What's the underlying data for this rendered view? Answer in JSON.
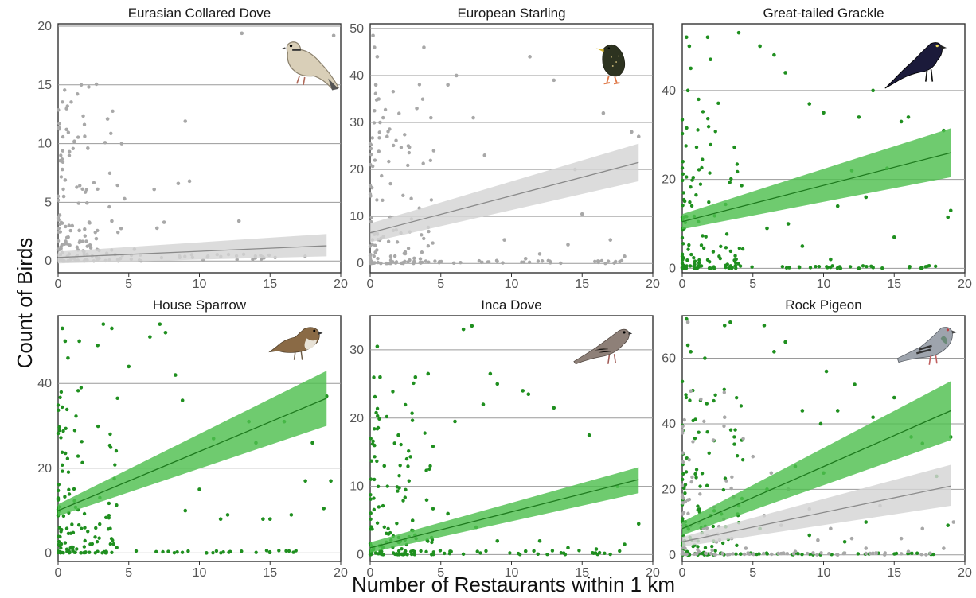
{
  "figure": {
    "ylabel": "Count of Birds",
    "xlabel": "Number of Restaurants within 1 km"
  },
  "colors": {
    "green": "#1f8f1f",
    "grey": "#a8a8a8",
    "green_ribbon": "#4fbf4f",
    "grey_ribbon": "#d4d4d4"
  },
  "chart_data": [
    {
      "type": "scatter",
      "title": "Eurasian Collared Dove",
      "xlim": [
        0,
        20
      ],
      "ylim": [
        -1,
        20.2
      ],
      "xticks": [
        0,
        5,
        10,
        15,
        20
      ],
      "yticks": [
        0,
        5,
        10,
        15,
        20
      ],
      "bird_icon": "collared-dove",
      "points_color": "grey",
      "n_points": 180,
      "series": [
        {
          "color": "grey",
          "points": [
            [
              0.3,
              7.8
            ],
            [
              0.5,
              6.9
            ],
            [
              0.4,
              5.5
            ],
            [
              0.6,
              11.2
            ],
            [
              0.8,
              9.3
            ],
            [
              3.5,
              12.1
            ],
            [
              4.5,
              10.0
            ],
            [
              2.2,
              3.3
            ],
            [
              2.7,
              1.9
            ],
            [
              3.8,
              3.4
            ],
            [
              4.7,
              5.3
            ],
            [
              6.8,
              6.1
            ],
            [
              8.5,
              6.6
            ],
            [
              9.0,
              11.9
            ],
            [
              9.3,
              6.8
            ],
            [
              7.5,
              3.3
            ],
            [
              7.0,
              2.8
            ],
            [
              12.8,
              3.4
            ],
            [
              13.0,
              19.4
            ],
            [
              19.5,
              19.2
            ],
            [
              1.5,
              2.6
            ],
            [
              1.0,
              3.0
            ],
            [
              0.2,
              1.2
            ],
            [
              5.4,
              1.0
            ],
            [
              10.6,
              0.4
            ]
          ],
          "fit": {
            "x": [
              0,
              19
            ],
            "y": [
              0.3,
              1.3
            ],
            "ci_low": [
              -0.2,
              0.4
            ],
            "ci_high": [
              0.8,
              2.3
            ]
          }
        }
      ]
    },
    {
      "type": "scatter",
      "title": "European Starling",
      "xlim": [
        0,
        20
      ],
      "ylim": [
        -2,
        51
      ],
      "xticks": [
        0,
        5,
        10,
        15,
        20
      ],
      "yticks": [
        0,
        10,
        20,
        30,
        40,
        50
      ],
      "bird_icon": "starling",
      "points_color": "grey",
      "n_points": 230,
      "series": [
        {
          "color": "grey",
          "points": [
            [
              0.2,
              48.5
            ],
            [
              0.3,
              46.0
            ],
            [
              0.5,
              44.0
            ],
            [
              0.4,
              38.0
            ],
            [
              0.6,
              35.0
            ],
            [
              0.3,
              32.5
            ],
            [
              0.7,
              30.0
            ],
            [
              1.2,
              27.0
            ],
            [
              2.7,
              25.0
            ],
            [
              3.3,
              33.0
            ],
            [
              4.3,
              31.0
            ],
            [
              3.8,
              46.0
            ],
            [
              4.5,
              24.0
            ],
            [
              5.5,
              38.0
            ],
            [
              6.1,
              40.0
            ],
            [
              7.3,
              31.0
            ],
            [
              8.1,
              23.0
            ],
            [
              11.3,
              44.0
            ],
            [
              13.0,
              39.0
            ],
            [
              14.5,
              20.0
            ],
            [
              16.5,
              32.0
            ],
            [
              18.5,
              28.0
            ],
            [
              19.0,
              27.0
            ],
            [
              15.0,
              10.5
            ],
            [
              17.0,
              5.0
            ],
            [
              14.0,
              4.0
            ],
            [
              12.0,
              2.0
            ],
            [
              9.5,
              5.0
            ],
            [
              11.0,
              1.0
            ],
            [
              18.0,
              1.5
            ]
          ],
          "fit": {
            "x": [
              0,
              19
            ],
            "y": [
              6.5,
              21.5
            ],
            "ci_low": [
              4.5,
              17.5
            ],
            "ci_high": [
              8.5,
              25.5
            ]
          }
        }
      ]
    },
    {
      "type": "scatter",
      "title": "Great-tailed Grackle",
      "xlim": [
        0,
        20
      ],
      "ylim": [
        -1,
        55
      ],
      "xticks": [
        0,
        5,
        10,
        15,
        20
      ],
      "yticks": [
        0,
        20,
        40
      ],
      "bird_icon": "grackle",
      "points_color": "green",
      "n_points": 260,
      "series": [
        {
          "color": "green",
          "points": [
            [
              0.3,
              52.0
            ],
            [
              0.5,
              50.0
            ],
            [
              0.6,
              45.0
            ],
            [
              0.4,
              40.0
            ],
            [
              1.8,
              52.0
            ],
            [
              2.0,
              47.0
            ],
            [
              4.0,
              53.0
            ],
            [
              5.5,
              50.0
            ],
            [
              6.5,
              48.0
            ],
            [
              7.3,
              44.0
            ],
            [
              9.0,
              37.0
            ],
            [
              10.0,
              35.0
            ],
            [
              12.5,
              34.0
            ],
            [
              13.5,
              40.0
            ],
            [
              15.5,
              33.0
            ],
            [
              16.0,
              34.0
            ],
            [
              18.5,
              31.0
            ],
            [
              19.0,
              13.0
            ],
            [
              18.8,
              11.5
            ],
            [
              12.0,
              22.0
            ],
            [
              14.5,
              22.5
            ],
            [
              11.0,
              14.0
            ],
            [
              13.0,
              16.0
            ],
            [
              15.0,
              7.0
            ],
            [
              10.5,
              2.0
            ],
            [
              11.2,
              0.0
            ],
            [
              12.5,
              0.0
            ],
            [
              8.5,
              5.0
            ],
            [
              6.0,
              9.0
            ],
            [
              7.5,
              10.0
            ]
          ],
          "fit": {
            "x": [
              0,
              19
            ],
            "y": [
              10.5,
              26.0
            ],
            "ci_low": [
              8.8,
              20.5
            ],
            "ci_high": [
              12.2,
              31.5
            ]
          }
        }
      ]
    },
    {
      "type": "scatter",
      "title": "House Sparrow",
      "xlim": [
        0,
        20
      ],
      "ylim": [
        -2,
        56
      ],
      "xticks": [
        0,
        5,
        10,
        15,
        20
      ],
      "yticks": [
        0,
        20,
        40
      ],
      "bird_icon": "house-sparrow",
      "points_color": "green",
      "n_points": 270,
      "series": [
        {
          "color": "green",
          "points": [
            [
              0.3,
              53.0
            ],
            [
              0.5,
              50.0
            ],
            [
              0.7,
              46.0
            ],
            [
              1.5,
              50.0
            ],
            [
              2.8,
              49.0
            ],
            [
              3.2,
              54.0
            ],
            [
              3.8,
              53.0
            ],
            [
              5.0,
              44.0
            ],
            [
              6.5,
              51.0
            ],
            [
              7.2,
              54.0
            ],
            [
              7.6,
              52.0
            ],
            [
              8.3,
              42.0
            ],
            [
              8.8,
              36.0
            ],
            [
              9.0,
              10.0
            ],
            [
              10.5,
              0.0
            ],
            [
              11.0,
              27.0
            ],
            [
              12.0,
              9.0
            ],
            [
              13.5,
              31.0
            ],
            [
              14.0,
              26.0
            ],
            [
              15.0,
              8.0
            ],
            [
              16.0,
              31.0
            ],
            [
              17.5,
              17.0
            ],
            [
              18.0,
              26.0
            ],
            [
              18.8,
              10.5
            ],
            [
              19.3,
              17.0
            ],
            [
              19.0,
              37.0
            ],
            [
              14.5,
              8.0
            ],
            [
              16.5,
              9.0
            ],
            [
              11.5,
              8.0
            ],
            [
              10.0,
              15.0
            ]
          ],
          "fit": {
            "x": [
              0,
              19
            ],
            "y": [
              10.0,
              36.5
            ],
            "ci_low": [
              8.7,
              30.0
            ],
            "ci_high": [
              11.5,
              43.0
            ]
          }
        }
      ]
    },
    {
      "type": "scatter",
      "title": "Inca Dove",
      "xlim": [
        0,
        20
      ],
      "ylim": [
        -1,
        35
      ],
      "xticks": [
        0,
        5,
        10,
        15,
        20
      ],
      "yticks": [
        0,
        10,
        20,
        30
      ],
      "bird_icon": "inca-dove",
      "points_color": "green",
      "n_points": 240,
      "series": [
        {
          "color": "green",
          "points": [
            [
              0.5,
              30.5
            ],
            [
              0.7,
              26.0
            ],
            [
              0.3,
              16.0
            ],
            [
              2.0,
              17.5
            ],
            [
              3.2,
              26.0
            ],
            [
              4.1,
              26.5
            ],
            [
              6.0,
              19.5
            ],
            [
              7.2,
              33.5
            ],
            [
              6.6,
              33.0
            ],
            [
              8.0,
              22.0
            ],
            [
              8.5,
              26.5
            ],
            [
              9.0,
              25.0
            ],
            [
              10.8,
              24.0
            ],
            [
              11.2,
              23.5
            ],
            [
              13.0,
              21.5
            ],
            [
              15.5,
              17.5
            ],
            [
              17.5,
              10.0
            ],
            [
              19.0,
              4.5
            ],
            [
              18.0,
              1.5
            ],
            [
              9.0,
              2.0
            ],
            [
              7.5,
              4.0
            ],
            [
              12.0,
              2.0
            ],
            [
              14.0,
              1.0
            ],
            [
              16.0,
              0.8
            ],
            [
              5.5,
              6.0
            ],
            [
              4.0,
              8.0
            ],
            [
              2.5,
              9.5
            ],
            [
              1.0,
              13.0
            ],
            [
              3.0,
              5.0
            ],
            [
              11.0,
              0.5
            ]
          ],
          "fit": {
            "x": [
              0,
              19
            ],
            "y": [
              1.0,
              11.0
            ],
            "ci_low": [
              0.3,
              9.0
            ],
            "ci_high": [
              1.8,
              12.8
            ]
          }
        }
      ]
    },
    {
      "type": "scatter",
      "title": "Rock Pigeon",
      "xlim": [
        0,
        20
      ],
      "ylim": [
        -2,
        73
      ],
      "xticks": [
        0,
        5,
        10,
        15,
        20
      ],
      "yticks": [
        0,
        20,
        40,
        60
      ],
      "bird_icon": "rock-pigeon",
      "points_color": "green+grey",
      "n_points": 280,
      "series": [
        {
          "color": "green",
          "points": [
            [
              0.3,
              72.0
            ],
            [
              0.4,
              64.0
            ],
            [
              0.6,
              62.0
            ],
            [
              1.6,
              60.0
            ],
            [
              3.4,
              71.0
            ],
            [
              3.0,
              70.0
            ],
            [
              5.8,
              70.0
            ],
            [
              6.5,
              62.0
            ],
            [
              7.3,
              65.0
            ],
            [
              8.5,
              44.0
            ],
            [
              9.8,
              40.0
            ],
            [
              10.2,
              56.0
            ],
            [
              11.0,
              44.0
            ],
            [
              12.2,
              52.0
            ],
            [
              13.5,
              42.0
            ],
            [
              15.0,
              48.0
            ],
            [
              16.2,
              36.0
            ],
            [
              17.0,
              34.0
            ],
            [
              19.0,
              36.0
            ],
            [
              18.0,
              24.0
            ],
            [
              18.8,
              9.0
            ],
            [
              11.5,
              4.0
            ],
            [
              13.0,
              10.0
            ],
            [
              9.0,
              6.0
            ],
            [
              5.5,
              8.0
            ],
            [
              2.0,
              12.0
            ],
            [
              10.0,
              25.0
            ],
            [
              8.0,
              27.0
            ],
            [
              6.0,
              20.0
            ],
            [
              4.0,
              15.0
            ]
          ],
          "fit": {
            "x": [
              0,
              19
            ],
            "y": [
              8.0,
              44.0
            ],
            "ci_low": [
              6.0,
              35.0
            ],
            "ci_high": [
              10.0,
              53.0
            ]
          }
        },
        {
          "color": "grey",
          "points": [
            [
              0.4,
              71.0
            ],
            [
              0.6,
              50.0
            ],
            [
              3.0,
              42.0
            ],
            [
              2.2,
              35.0
            ],
            [
              5.0,
              30.0
            ],
            [
              6.3,
              25.0
            ],
            [
              7.5,
              20.0
            ],
            [
              9.0,
              14.0
            ],
            [
              10.5,
              8.0
            ],
            [
              12.0,
              5.0
            ],
            [
              14.0,
              15.0
            ],
            [
              15.5,
              5.0
            ],
            [
              17.0,
              8.0
            ],
            [
              19.2,
              10.0
            ],
            [
              18.5,
              2.0
            ],
            [
              16.0,
              1.0
            ],
            [
              13.0,
              2.0
            ],
            [
              11.0,
              0.0
            ],
            [
              8.0,
              1.0
            ],
            [
              4.5,
              2.0
            ],
            [
              3.5,
              5.0
            ],
            [
              1.5,
              8.0
            ],
            [
              7.0,
              9.0
            ],
            [
              9.6,
              4.5
            ],
            [
              5.8,
              12.0
            ]
          ],
          "fit": {
            "x": [
              0,
              19
            ],
            "y": [
              4.0,
              21.0
            ],
            "ci_low": [
              2.5,
              15.0
            ],
            "ci_high": [
              5.5,
              27.5
            ]
          }
        }
      ]
    }
  ]
}
